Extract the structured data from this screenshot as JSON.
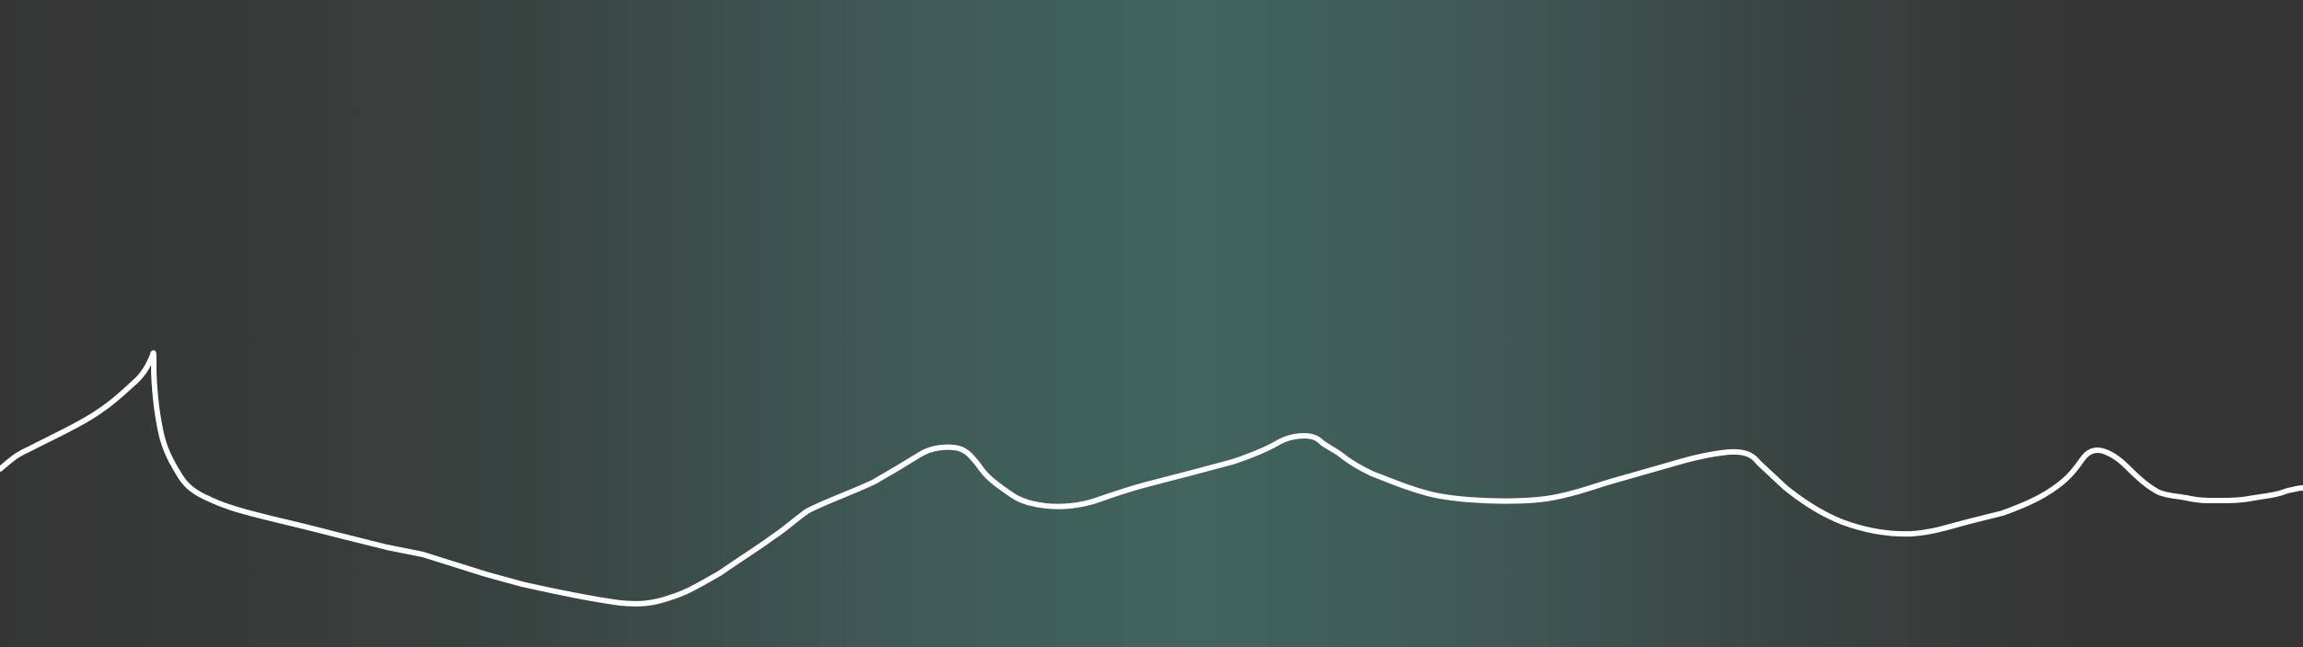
{
  "scene": {
    "background": {
      "edge_color": "#353535",
      "center_color": "#41645d"
    },
    "ridge_line": {
      "color": "#ffffff",
      "style": "hand-drawn outline"
    }
  }
}
